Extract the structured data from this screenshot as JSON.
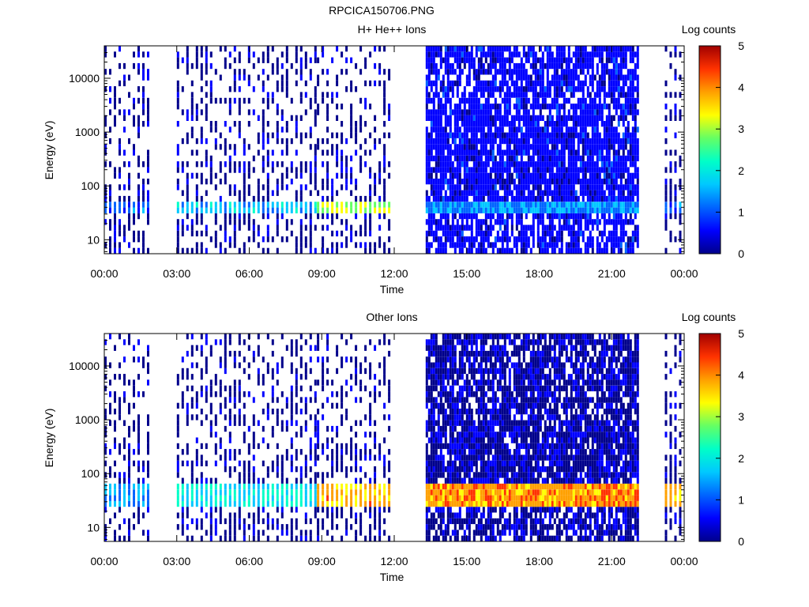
{
  "figure_title": "RPCICA150706.PNG",
  "colors": {
    "colormap": [
      "#00008b",
      "#0000ff",
      "#0064ff",
      "#00c8ff",
      "#00ffc8",
      "#64ff64",
      "#ffff00",
      "#ffa000",
      "#ff3200",
      "#a00000"
    ],
    "axis": "#000000",
    "background": "#ffffff"
  },
  "chart_data": [
    {
      "type": "heatmap",
      "title": "H+ He++ Ions",
      "xlabel": "Time",
      "ylabel": "Energy (eV)",
      "x_scale": "time",
      "x_ticks": [
        "00:00",
        "03:00",
        "06:00",
        "09:00",
        "12:00",
        "15:00",
        "18:00",
        "21:00",
        "00:00"
      ],
      "xlim_hours": [
        0,
        24
      ],
      "y_scale": "log",
      "ylim": [
        5.5,
        40000
      ],
      "y_ticks": [
        10,
        100,
        1000,
        10000
      ],
      "y_tick_labels": [
        "10",
        "100",
        "1000",
        "10000"
      ],
      "colorbar": {
        "label": "Log counts",
        "range": [
          0,
          5
        ],
        "ticks": [
          "0",
          "1",
          "2",
          "3",
          "4",
          "5"
        ]
      },
      "data_gaps_hours": [
        [
          1.85,
          3.0
        ],
        [
          11.95,
          13.3
        ],
        [
          22.1,
          23.2
        ]
      ],
      "segments": [
        {
          "start_hour": 0.0,
          "end_hour": 1.85,
          "mode": "sparse-sweeps",
          "band_energy_eV": [
            28,
            55
          ],
          "band_log_counts": 1.2
        },
        {
          "start_hour": 3.0,
          "end_hour": 8.8,
          "mode": "sparse-sweeps",
          "band_energy_eV": [
            28,
            55
          ],
          "band_log_counts": 1.7
        },
        {
          "start_hour": 8.8,
          "end_hour": 11.95,
          "mode": "sparse-sweeps",
          "band_energy_eV": [
            28,
            55
          ],
          "band_log_counts": 2.9
        },
        {
          "start_hour": 13.3,
          "end_hour": 22.1,
          "mode": "continuous",
          "band_energy_eV": [
            28,
            55
          ],
          "band_log_counts": 1.5,
          "background_log_counts": 0.6
        },
        {
          "start_hour": 23.2,
          "end_hour": 24.0,
          "mode": "sparse-sweeps",
          "band_energy_eV": [
            28,
            55
          ],
          "band_log_counts": 1.3
        }
      ]
    },
    {
      "type": "heatmap",
      "title": "Other Ions",
      "xlabel": "Time",
      "ylabel": "Energy (eV)",
      "x_scale": "time",
      "x_ticks": [
        "00:00",
        "03:00",
        "06:00",
        "09:00",
        "12:00",
        "15:00",
        "18:00",
        "21:00",
        "00:00"
      ],
      "xlim_hours": [
        0,
        24
      ],
      "y_scale": "log",
      "ylim": [
        5.5,
        40000
      ],
      "y_ticks": [
        10,
        100,
        1000,
        10000
      ],
      "y_tick_labels": [
        "10",
        "100",
        "1000",
        "10000"
      ],
      "colorbar": {
        "label": "Log counts",
        "range": [
          0,
          5
        ],
        "ticks": [
          "0",
          "1",
          "2",
          "3",
          "4",
          "5"
        ]
      },
      "data_gaps_hours": [
        [
          1.85,
          3.0
        ],
        [
          11.95,
          13.3
        ],
        [
          22.1,
          23.2
        ]
      ],
      "segments": [
        {
          "start_hour": 0.0,
          "end_hour": 1.85,
          "mode": "sparse-sweeps",
          "band_energy_eV": [
            22,
            60
          ],
          "band_log_counts": 1.5
        },
        {
          "start_hour": 3.0,
          "end_hour": 8.8,
          "mode": "sparse-sweeps",
          "band_energy_eV": [
            22,
            60
          ],
          "band_log_counts": 2.0
        },
        {
          "start_hour": 8.8,
          "end_hour": 11.95,
          "mode": "sparse-sweeps",
          "band_energy_eV": [
            22,
            60
          ],
          "band_log_counts": 3.6
        },
        {
          "start_hour": 13.3,
          "end_hour": 22.1,
          "mode": "continuous",
          "band_energy_eV": [
            22,
            60
          ],
          "band_log_counts": 3.8,
          "background_log_counts": 0.3
        },
        {
          "start_hour": 23.2,
          "end_hour": 24.0,
          "mode": "sparse-sweeps",
          "band_energy_eV": [
            22,
            60
          ],
          "band_log_counts": 3.5
        }
      ]
    }
  ]
}
